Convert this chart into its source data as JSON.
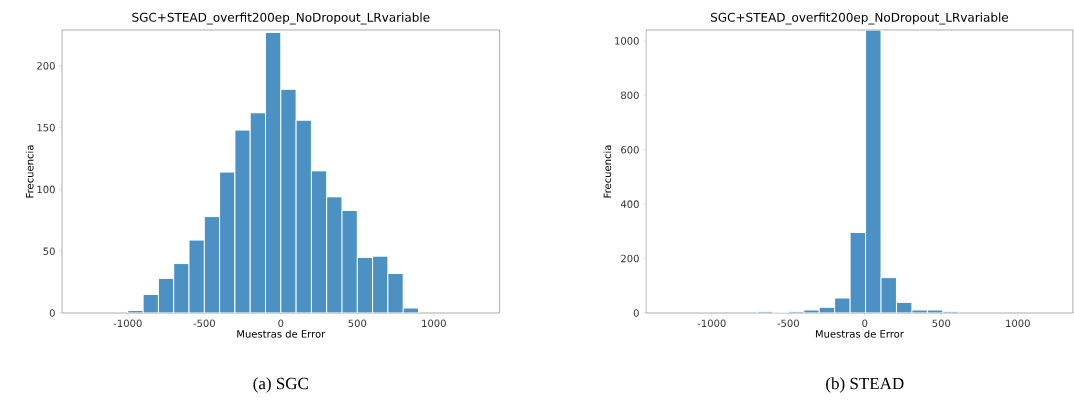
{
  "chart_data": [
    {
      "type": "histogram",
      "title": "SGC+STEAD_overfit200ep_NoDropout_LRvariable",
      "xlabel": "Muestras de Error",
      "ylabel": "Frecuencia",
      "color": "#4c91c4",
      "bins": [
        -1000,
        -900,
        -800,
        -700,
        -600,
        -500,
        -400,
        -300,
        -200,
        -100,
        0,
        100,
        200,
        300,
        400,
        500,
        600,
        700,
        800,
        900
      ],
      "values": [
        2,
        15,
        28,
        40,
        59,
        78,
        114,
        148,
        162,
        227,
        181,
        156,
        115,
        94,
        83,
        45,
        46,
        32,
        4
      ],
      "xlim": [
        -1430,
        1430
      ],
      "ylim": [
        0,
        229
      ],
      "xticks": [
        -1000,
        -500,
        0,
        500,
        1000
      ],
      "yticks": [
        0,
        50,
        100,
        150,
        200
      ],
      "annotations": [
        "(a)  SGC"
      ]
    },
    {
      "type": "histogram",
      "title": "SGC+STEAD_overfit200ep_NoDropout_LRvariable",
      "xlabel": "Muestras de Error",
      "ylabel": "Frecuencia",
      "color": "#4c91c4",
      "bins": [
        -702,
        -601,
        -500,
        -399,
        -298,
        -197,
        -96,
        5,
        106,
        207,
        308,
        409,
        510,
        611
      ],
      "values": [
        6,
        0,
        6,
        11,
        21,
        55,
        296,
        1040,
        130,
        39,
        11,
        11,
        6
      ],
      "xlim": [
        -1430,
        1360
      ],
      "ylim": [
        0,
        1040
      ],
      "xticks": [
        -1000,
        -500,
        0,
        500,
        1000
      ],
      "yticks": [
        0,
        200,
        400,
        600,
        800,
        1000
      ],
      "annotations": [
        "(b)  STEAD"
      ]
    }
  ]
}
